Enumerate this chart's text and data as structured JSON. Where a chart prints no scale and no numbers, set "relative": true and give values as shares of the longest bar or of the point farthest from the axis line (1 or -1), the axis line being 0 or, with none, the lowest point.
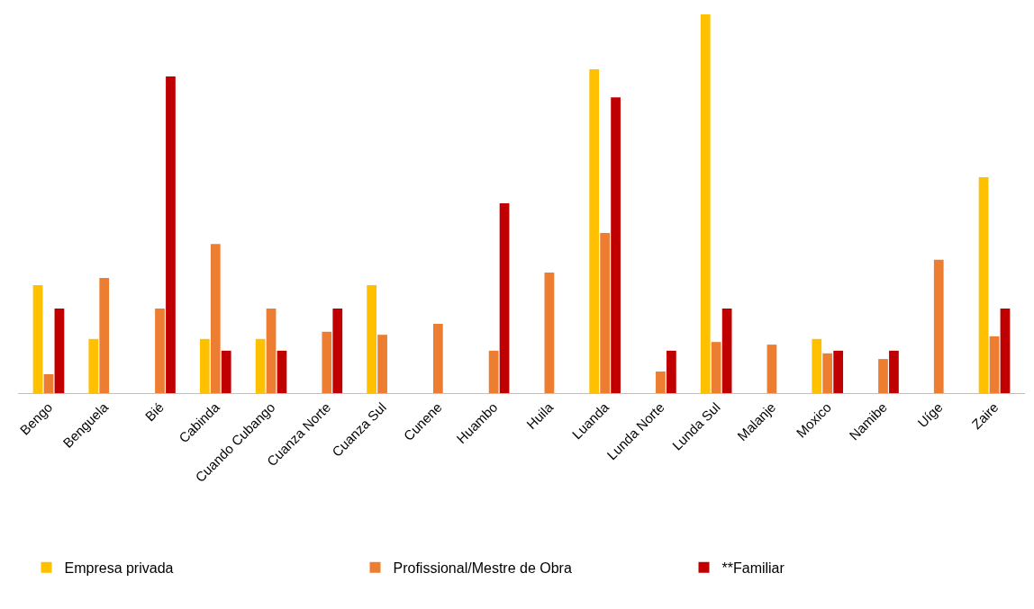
{
  "chart_data": {
    "type": "bar",
    "relative": true,
    "legend": "bottom",
    "categories": [
      "Bengo",
      "Benguela",
      "Bié",
      "Cabinda",
      "Cuando Cubango",
      "Cuanza Norte",
      "Cuanza Sul",
      "Cunene",
      "Huambo",
      "Huila",
      "Luanda",
      "Lunda Norte",
      "Lunda Sul",
      "Malanje",
      "Moxico",
      "Namibe",
      "Uíge",
      "Zaire"
    ],
    "series": [
      {
        "name": "Empresa privada",
        "color": "#ffc000",
        "values": [
          0.285,
          0.143,
          null,
          0.143,
          0.143,
          null,
          0.285,
          null,
          null,
          null,
          0.855,
          null,
          1,
          null,
          0.143,
          null,
          null,
          0.57
        ]
      },
      {
        "name": "Profissional/Mestre de Obra",
        "color": "#ed7d31",
        "values": [
          0.05,
          0.304,
          0.223,
          0.394,
          0.223,
          0.162,
          0.154,
          0.183,
          0.112,
          0.318,
          0.423,
          0.057,
          0.135,
          0.128,
          0.105,
          0.09,
          0.352,
          0.15
        ]
      },
      {
        "name": "**Familiar",
        "color": "#c00000",
        "values": [
          0.223,
          null,
          0.836,
          0.112,
          0.112,
          0.223,
          null,
          null,
          0.501,
          null,
          0.781,
          0.112,
          0.223,
          null,
          0.112,
          0.112,
          null,
          0.223
        ]
      }
    ]
  }
}
